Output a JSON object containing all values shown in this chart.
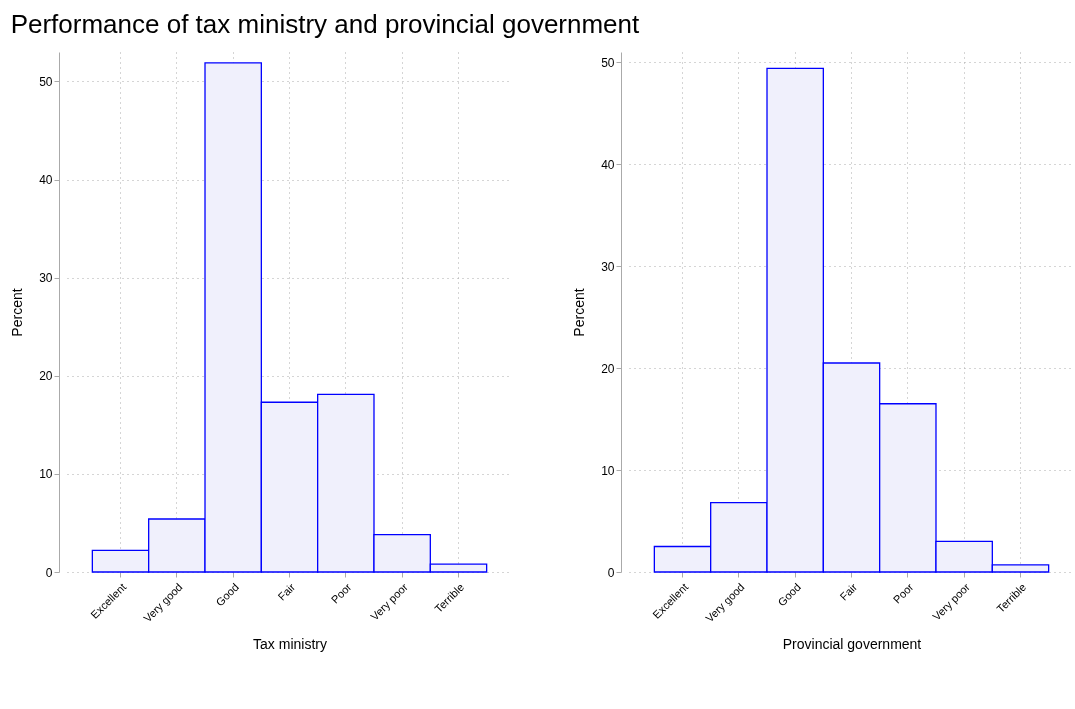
{
  "chart_data": [
    {
      "type": "bar",
      "title": "Performance of tax ministry and provincial government",
      "xlabel": "Tax ministry",
      "ylabel": "Percent",
      "categories": [
        "Excellent",
        "Very good",
        "Good",
        "Fair",
        "Poor",
        "Very poor",
        "Terrible"
      ],
      "values": [
        2.2,
        5.4,
        51.9,
        17.3,
        18.1,
        3.8,
        0.8
      ],
      "color": "#f0f0fc",
      "ylim": [
        0,
        53
      ],
      "yticks": [
        0,
        10,
        20,
        30,
        40,
        50
      ],
      "grid": true
    },
    {
      "type": "bar",
      "xlabel": "Provincial government",
      "ylabel": "Percent",
      "categories": [
        "Excellent",
        "Very good",
        "Good",
        "Fair",
        "Poor",
        "Very poor",
        "Terrible"
      ],
      "values": [
        2.5,
        6.8,
        49.4,
        20.5,
        16.5,
        3.0,
        0.7
      ],
      "color": "#f0f0fc",
      "ylim": [
        0,
        51
      ],
      "yticks": [
        0,
        10,
        20,
        30,
        40,
        50
      ],
      "grid": true
    }
  ]
}
